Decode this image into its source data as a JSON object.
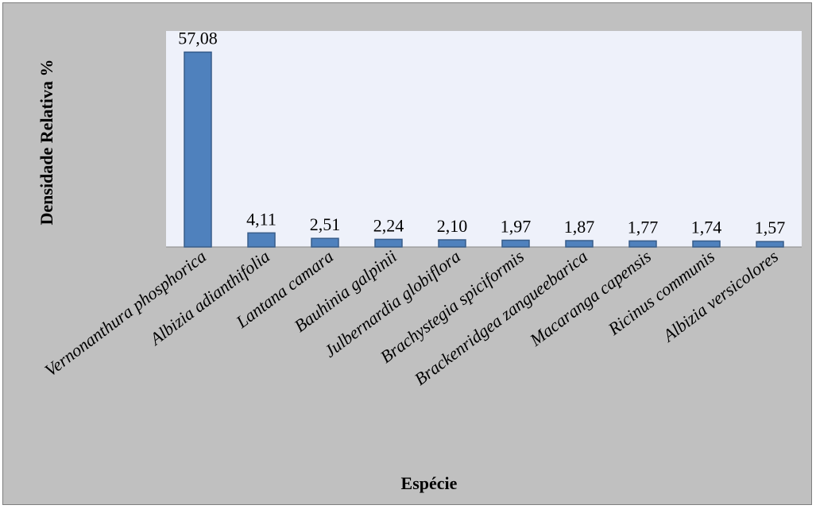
{
  "chart_data": {
    "type": "bar",
    "title": "",
    "xlabel": "Espécie",
    "ylabel": "Densidade Relativa %",
    "categories": [
      "Vernonanthura phosphorica",
      "Albizia adianthifolia",
      "Lantana camara",
      "Bauhinia galpinii",
      "Julbernardia globiflora",
      "Brachystegia spiciformis",
      "Brackenridgea zangueebarica",
      "Macaranga capensis",
      "Ricinus communis",
      "Albizia versicolores"
    ],
    "values": [
      57.08,
      4.11,
      2.51,
      2.24,
      2.1,
      1.97,
      1.87,
      1.77,
      1.74,
      1.57
    ],
    "data_labels": [
      "57,08",
      "4,11",
      "2,51",
      "2,24",
      "2,10",
      "1,97",
      "1,87",
      "1,77",
      "1,74",
      "1,57"
    ],
    "ylim": [
      0,
      60
    ],
    "grid": false,
    "legend": "none",
    "colors": {
      "bar_fill": "#4f81bd",
      "bar_stroke": "#385d8a",
      "plot_background": "#eef1fa",
      "chart_background": "#c0c0c0"
    }
  }
}
